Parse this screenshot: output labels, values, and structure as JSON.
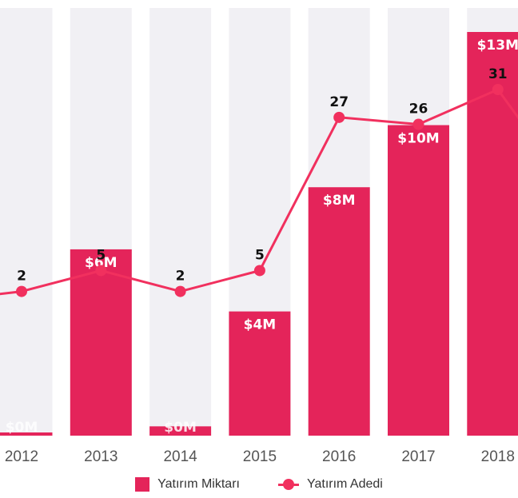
{
  "chart_data": {
    "type": "bar",
    "categories": [
      "2012",
      "2013",
      "2014",
      "2015",
      "2016",
      "2017",
      "2018"
    ],
    "series": [
      {
        "name": "Yatırım Miktarı",
        "kind": "bar",
        "values": [
          0.1,
          6,
          0.3,
          4,
          8,
          10,
          13
        ],
        "labels": [
          "$0M",
          "$6M",
          "$0M",
          "$4M",
          "$8M",
          "$10M",
          "$13M"
        ]
      },
      {
        "name": "Yatırım Adedi",
        "kind": "line",
        "values": [
          2,
          5,
          2,
          5,
          27,
          26,
          31
        ],
        "labels": [
          "2",
          "5",
          "2",
          "5",
          "27",
          "26",
          "31"
        ]
      }
    ],
    "colors": {
      "bar": "#E4245A",
      "line": "#F1305E",
      "background_band": "#F1F0F4"
    },
    "legend_position": "bottom-center",
    "grid": false
  },
  "legend": {
    "bar_label": "Yatırım Miktarı",
    "line_label": "Yatırım Adedi"
  }
}
